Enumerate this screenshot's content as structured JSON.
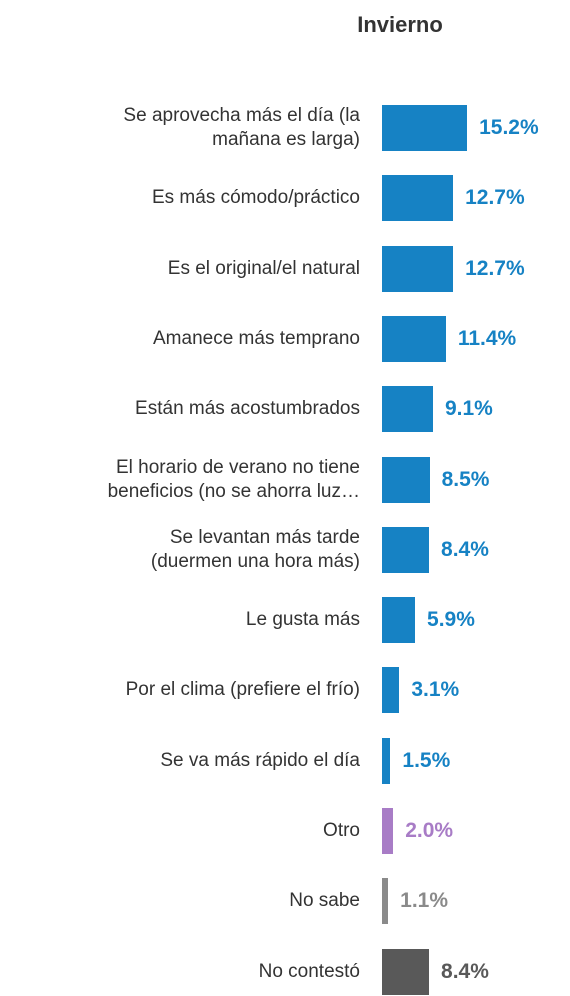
{
  "chart_data": {
    "type": "bar",
    "orientation": "horizontal",
    "title": "Invierno",
    "categories": [
      "Se aprovecha más el día (la\nmañana es larga)",
      "Es más cómodo/práctico",
      "Es el original/el natural",
      "Amanece más temprano",
      "Están más acostumbrados",
      "El horario de verano no tiene\nbeneficios (no se ahorra luz…",
      "Se levantan más tarde\n(duermen una hora más)",
      "Le gusta más",
      "Por el clima (prefiere el frío)",
      "Se va más rápido el día",
      "Otro",
      "No sabe",
      "No contestó"
    ],
    "values": [
      15.2,
      12.7,
      12.7,
      11.4,
      9.1,
      8.5,
      8.4,
      5.9,
      3.1,
      1.5,
      2.0,
      1.1,
      8.4
    ],
    "value_labels": [
      "15.2%",
      "12.7%",
      "12.7%",
      "11.4%",
      "9.1%",
      "8.5%",
      "8.4%",
      "5.9%",
      "3.1%",
      "1.5%",
      "2.0%",
      "1.1%",
      "8.4%"
    ],
    "colors": [
      "#1682c4",
      "#1682c4",
      "#1682c4",
      "#1682c4",
      "#1682c4",
      "#1682c4",
      "#1682c4",
      "#1682c4",
      "#1682c4",
      "#1682c4",
      "#a87cc6",
      "#8a8a8a",
      "#595959"
    ]
  }
}
